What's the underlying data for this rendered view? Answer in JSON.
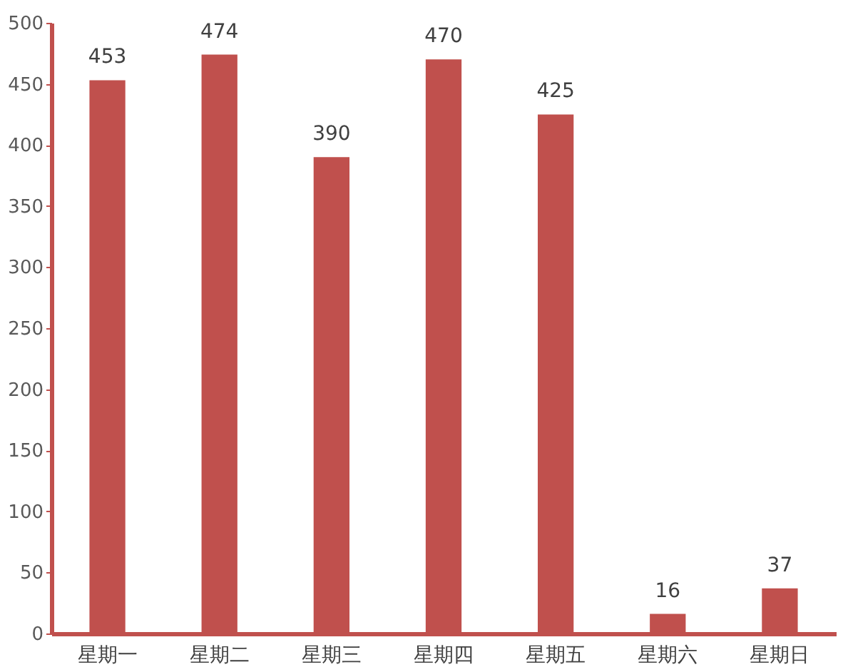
{
  "chart_data": {
    "type": "bar",
    "categories": [
      "星期一",
      "星期二",
      "星期三",
      "星期四",
      "星期五",
      "星期六",
      "星期日"
    ],
    "values": [
      453,
      474,
      390,
      470,
      425,
      16,
      37
    ],
    "color": "#c0504d",
    "ylim": [
      0,
      500
    ],
    "yticks": [
      0,
      50,
      100,
      150,
      200,
      250,
      300,
      350,
      400,
      450,
      500
    ],
    "grid": false,
    "data_labels": true
  }
}
